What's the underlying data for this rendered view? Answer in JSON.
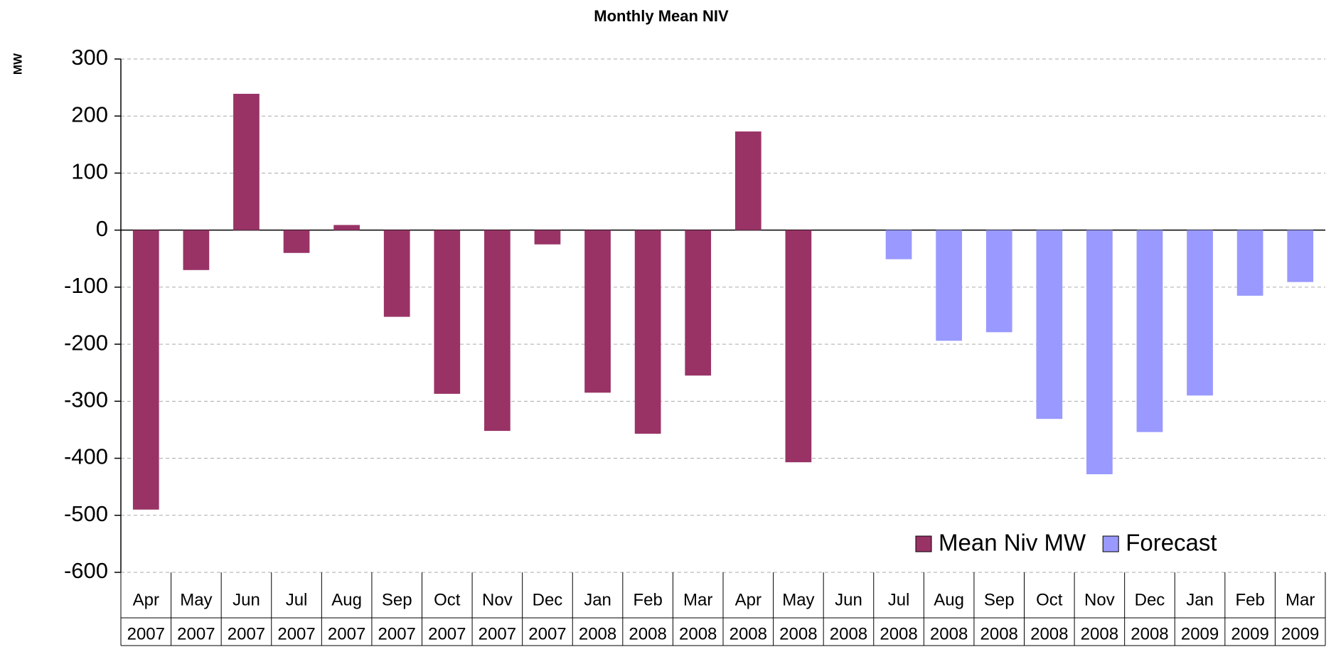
{
  "chart_data": {
    "type": "bar",
    "title": "Monthly Mean NIV",
    "ylabel": "MW",
    "categories": [
      [
        "Apr",
        "2007"
      ],
      [
        "May",
        "2007"
      ],
      [
        "Jun",
        "2007"
      ],
      [
        "Jul",
        "2007"
      ],
      [
        "Aug",
        "2007"
      ],
      [
        "Sep",
        "2007"
      ],
      [
        "Oct",
        "2007"
      ],
      [
        "Nov",
        "2007"
      ],
      [
        "Dec",
        "2007"
      ],
      [
        "Jan",
        "2008"
      ],
      [
        "Feb",
        "2008"
      ],
      [
        "Mar",
        "2008"
      ],
      [
        "Apr",
        "2008"
      ],
      [
        "May",
        "2008"
      ],
      [
        "Jun",
        "2008"
      ],
      [
        "Jul",
        "2008"
      ],
      [
        "Aug",
        "2008"
      ],
      [
        "Sep",
        "2008"
      ],
      [
        "Oct",
        "2008"
      ],
      [
        "Nov",
        "2008"
      ],
      [
        "Dec",
        "2008"
      ],
      [
        "Jan",
        "2009"
      ],
      [
        "Feb",
        "2009"
      ],
      [
        "Mar",
        "2009"
      ]
    ],
    "series": [
      {
        "name": "Mean Niv MW",
        "color": "#993366",
        "values": [
          -490,
          -70,
          239,
          -40,
          9,
          -152,
          -287,
          -352,
          -25,
          -285,
          -357,
          -255,
          173,
          -407,
          null,
          null,
          null,
          null,
          null,
          null,
          null,
          null,
          null,
          null
        ]
      },
      {
        "name": "Forecast",
        "color": "#9999ff",
        "values": [
          null,
          null,
          null,
          null,
          null,
          null,
          null,
          null,
          null,
          null,
          null,
          null,
          null,
          null,
          null,
          -51,
          -194,
          -179,
          -331,
          -428,
          -354,
          -290,
          -115,
          -91
        ]
      }
    ],
    "ylim": [
      -600,
      300
    ],
    "yticks": [
      -600,
      -500,
      -400,
      -300,
      -200,
      -100,
      0,
      100,
      200,
      300
    ],
    "grid": true,
    "legend": "lower right"
  }
}
